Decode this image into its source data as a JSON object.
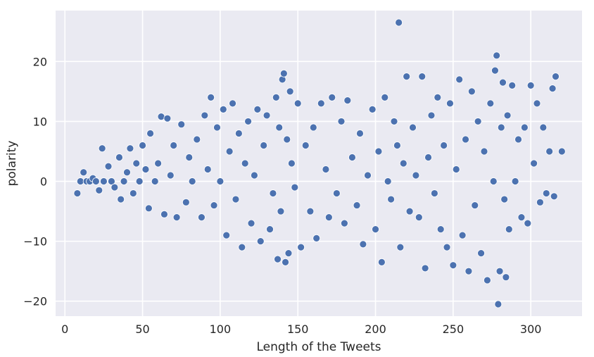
{
  "chart_data": {
    "type": "scatter",
    "title": "",
    "xlabel": "Length of the Tweets",
    "ylabel": "polarity",
    "xlim": [
      -6,
      333
    ],
    "ylim": [
      -22.5,
      28.5
    ],
    "xticks": [
      0,
      50,
      100,
      150,
      200,
      250,
      300
    ],
    "yticks": [
      -20,
      -10,
      0,
      10,
      20
    ],
    "xtick_labels": [
      "0",
      "50",
      "100",
      "150",
      "200",
      "250",
      "300"
    ],
    "ytick_labels": [
      "−20",
      "−10",
      "0",
      "10",
      "20"
    ],
    "grid": true,
    "style": {
      "background": "#eaeaf2",
      "grid_color": "#ffffff",
      "marker_color": "#4c72b0",
      "marker_edge": "#ffffff"
    },
    "series": [
      {
        "points": [
          [
            8,
            -2
          ],
          [
            10,
            0
          ],
          [
            12,
            1.5
          ],
          [
            14,
            0
          ],
          [
            16,
            0
          ],
          [
            18,
            0.5
          ],
          [
            20,
            0
          ],
          [
            22,
            -1.5
          ],
          [
            24,
            5.5
          ],
          [
            25,
            0
          ],
          [
            28,
            2.5
          ],
          [
            30,
            0
          ],
          [
            32,
            -1
          ],
          [
            35,
            4
          ],
          [
            36,
            -3
          ],
          [
            38,
            0
          ],
          [
            40,
            1.5
          ],
          [
            42,
            5.5
          ],
          [
            44,
            -2
          ],
          [
            46,
            3
          ],
          [
            48,
            0
          ],
          [
            50,
            6
          ],
          [
            52,
            2
          ],
          [
            54,
            -4.5
          ],
          [
            55,
            8
          ],
          [
            58,
            0
          ],
          [
            60,
            3
          ],
          [
            62,
            10.8
          ],
          [
            64,
            -5.5
          ],
          [
            66,
            10.5
          ],
          [
            68,
            1
          ],
          [
            70,
            6
          ],
          [
            72,
            -6
          ],
          [
            75,
            9.5
          ],
          [
            78,
            -3.5
          ],
          [
            80,
            4
          ],
          [
            82,
            0
          ],
          [
            85,
            7
          ],
          [
            88,
            -6
          ],
          [
            90,
            11
          ],
          [
            92,
            2
          ],
          [
            94,
            14
          ],
          [
            96,
            -4
          ],
          [
            98,
            9
          ],
          [
            100,
            0
          ],
          [
            102,
            12
          ],
          [
            104,
            -9
          ],
          [
            106,
            5
          ],
          [
            108,
            13
          ],
          [
            110,
            -3
          ],
          [
            112,
            8
          ],
          [
            114,
            -11
          ],
          [
            116,
            3
          ],
          [
            118,
            10
          ],
          [
            120,
            -7
          ],
          [
            122,
            1
          ],
          [
            124,
            12
          ],
          [
            126,
            -10
          ],
          [
            128,
            6
          ],
          [
            130,
            11
          ],
          [
            132,
            -8
          ],
          [
            134,
            -2
          ],
          [
            136,
            14
          ],
          [
            137,
            -13
          ],
          [
            138,
            9
          ],
          [
            139,
            -5
          ],
          [
            140,
            17
          ],
          [
            141,
            18
          ],
          [
            142,
            -13.5
          ],
          [
            143,
            7
          ],
          [
            144,
            -12
          ],
          [
            145,
            15
          ],
          [
            146,
            3
          ],
          [
            148,
            -1
          ],
          [
            150,
            13
          ],
          [
            152,
            -11
          ],
          [
            155,
            6
          ],
          [
            158,
            -5
          ],
          [
            160,
            9
          ],
          [
            162,
            -9.5
          ],
          [
            165,
            13
          ],
          [
            168,
            2
          ],
          [
            170,
            -6
          ],
          [
            172,
            14
          ],
          [
            175,
            -2
          ],
          [
            178,
            10
          ],
          [
            180,
            -7
          ],
          [
            182,
            13.5
          ],
          [
            185,
            4
          ],
          [
            188,
            -4
          ],
          [
            190,
            8
          ],
          [
            192,
            -10.5
          ],
          [
            195,
            1
          ],
          [
            198,
            12
          ],
          [
            200,
            -8
          ],
          [
            202,
            5
          ],
          [
            204,
            -13.5
          ],
          [
            206,
            14
          ],
          [
            208,
            0
          ],
          [
            210,
            -3
          ],
          [
            212,
            10
          ],
          [
            214,
            6
          ],
          [
            215,
            26.5
          ],
          [
            216,
            -11
          ],
          [
            218,
            3
          ],
          [
            220,
            17.5
          ],
          [
            222,
            -5
          ],
          [
            224,
            9
          ],
          [
            226,
            1
          ],
          [
            228,
            -6
          ],
          [
            230,
            17.5
          ],
          [
            232,
            -14.5
          ],
          [
            234,
            4
          ],
          [
            236,
            11
          ],
          [
            238,
            -2
          ],
          [
            240,
            14
          ],
          [
            242,
            -8
          ],
          [
            244,
            6
          ],
          [
            246,
            -11
          ],
          [
            248,
            13
          ],
          [
            250,
            -14
          ],
          [
            252,
            2
          ],
          [
            254,
            17
          ],
          [
            256,
            -9
          ],
          [
            258,
            7
          ],
          [
            260,
            -15
          ],
          [
            262,
            15
          ],
          [
            264,
            -4
          ],
          [
            266,
            10
          ],
          [
            268,
            -12
          ],
          [
            270,
            5
          ],
          [
            272,
            -16.5
          ],
          [
            274,
            13
          ],
          [
            276,
            0
          ],
          [
            277,
            18.5
          ],
          [
            278,
            21
          ],
          [
            279,
            -20.5
          ],
          [
            280,
            -15
          ],
          [
            281,
            9
          ],
          [
            282,
            16.5
          ],
          [
            283,
            -3
          ],
          [
            284,
            -16
          ],
          [
            285,
            11
          ],
          [
            286,
            -8
          ],
          [
            288,
            16
          ],
          [
            290,
            0
          ],
          [
            292,
            7
          ],
          [
            294,
            -6
          ],
          [
            296,
            9
          ],
          [
            298,
            -7
          ],
          [
            300,
            16
          ],
          [
            302,
            3
          ],
          [
            304,
            13
          ],
          [
            306,
            -3.5
          ],
          [
            308,
            9
          ],
          [
            310,
            -2
          ],
          [
            312,
            5
          ],
          [
            314,
            15.5
          ],
          [
            315,
            -2.5
          ],
          [
            316,
            17.5
          ],
          [
            320,
            5
          ]
        ]
      }
    ]
  }
}
